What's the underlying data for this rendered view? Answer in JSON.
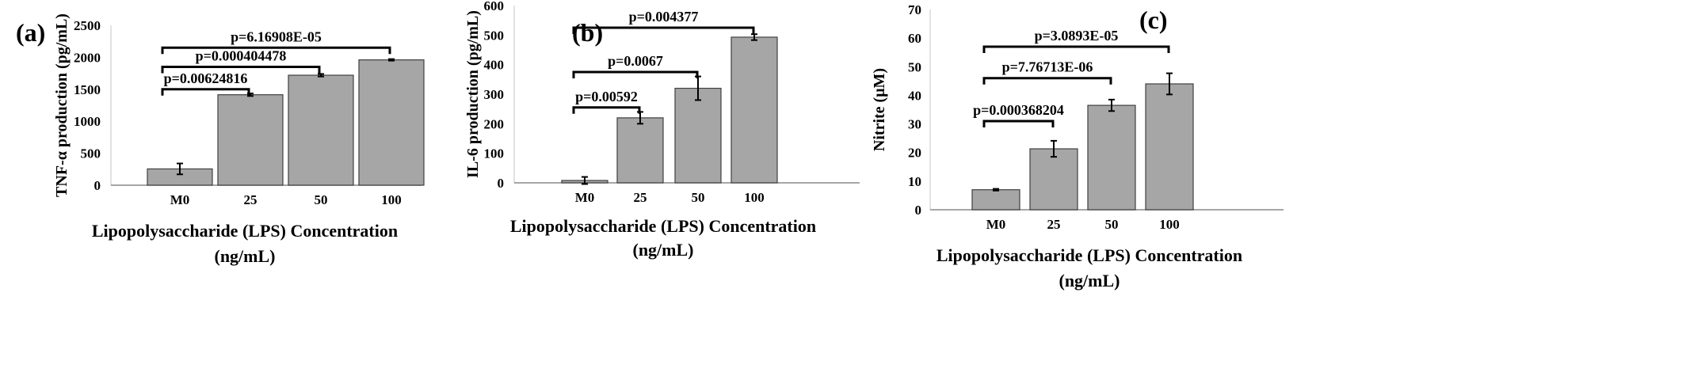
{
  "chart_data": [
    {
      "type": "bar",
      "panel": "(a)",
      "categories": [
        "M0",
        "25",
        "50",
        "100"
      ],
      "values": [
        255,
        1415,
        1720,
        1960
      ],
      "errors": [
        85,
        20,
        20,
        12
      ],
      "ylabel": "TNF-α production (pg/mL)",
      "xlabel": "Lipopolysaccharide (LPS) Concentration",
      "xunit": "(ng/mL)",
      "ylim": [
        0,
        2500
      ],
      "yticks": [
        "0",
        "500",
        "1000",
        "1500",
        "2000",
        "2500"
      ],
      "grid": false,
      "annotations": [
        {
          "text": "p=0.00624816",
          "from": "M0",
          "to": "25",
          "y": 1500
        },
        {
          "text": "p=0.000404478",
          "from": "M0",
          "to": "50",
          "y": 1850
        },
        {
          "text": "p=6.16908E-05",
          "from": "M0",
          "to": "100",
          "y": 2150
        }
      ]
    },
    {
      "type": "bar",
      "panel": "(b)",
      "categories": [
        "M0",
        "25",
        "50",
        "100"
      ],
      "values": [
        8,
        220,
        320,
        493
      ],
      "errors": [
        12,
        20,
        40,
        10
      ],
      "ylabel": "IL-6 production (pg/mL)",
      "xlabel": "Lipopolysaccharide (LPS) Concentration",
      "xunit": "(ng/mL)",
      "ylim": [
        0,
        600
      ],
      "yticks": [
        "0",
        "100",
        "200",
        "300",
        "400",
        "500",
        "600"
      ],
      "grid": false,
      "annotations": [
        {
          "text": "p=0.00592",
          "from": "M0",
          "to": "25",
          "y": 255
        },
        {
          "text": "p=0.0067",
          "from": "M0",
          "to": "50",
          "y": 375
        },
        {
          "text": "p=0.004377",
          "from": "M0",
          "to": "100",
          "y": 525
        }
      ]
    },
    {
      "type": "bar",
      "panel": "(c)",
      "categories": [
        "M0",
        "25",
        "50",
        "100"
      ],
      "values": [
        7,
        21.3,
        36.5,
        44
      ],
      "errors": [
        0.3,
        2.8,
        2,
        3.7
      ],
      "ylabel": "Nitrite (μM)",
      "xlabel": "Lipopolysaccharide (LPS) Concentration",
      "xunit": "(ng/mL)",
      "ylim": [
        0,
        70
      ],
      "yticks": [
        "0",
        "10",
        "20",
        "30",
        "40",
        "50",
        "60",
        "70"
      ],
      "grid": false,
      "annotations": [
        {
          "text": "p=0.000368204",
          "from": "M0",
          "to": "25",
          "y": 31
        },
        {
          "text": "p=7.76713E-06",
          "from": "M0",
          "to": "50",
          "y": 46
        },
        {
          "text": "p=3.0893E-05",
          "from": "M0",
          "to": "100",
          "y": 57
        }
      ]
    }
  ]
}
